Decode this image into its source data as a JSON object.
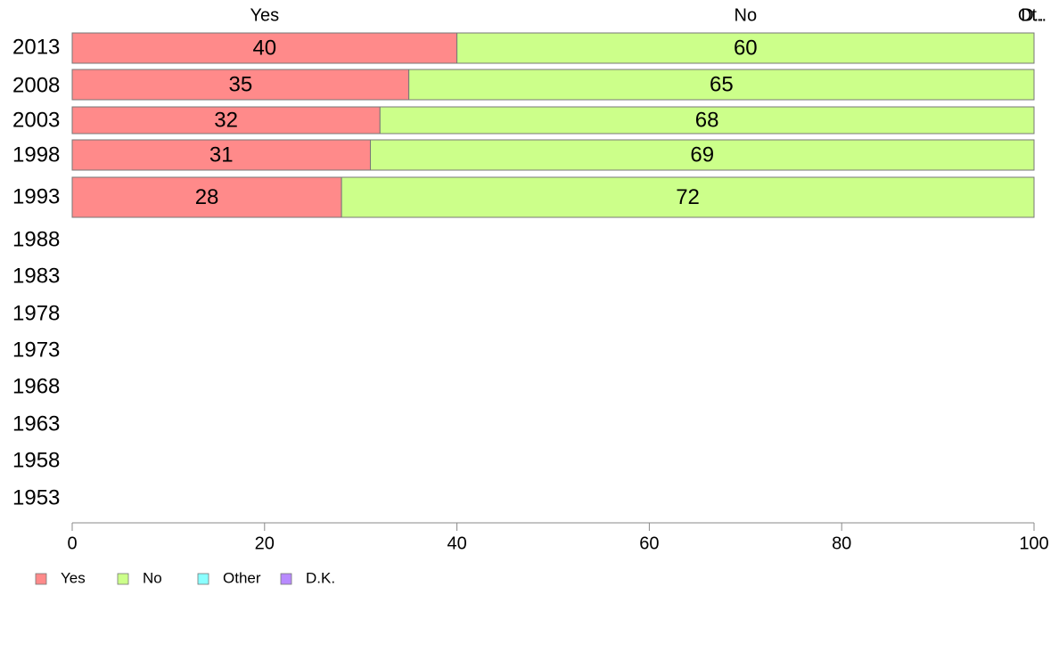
{
  "chart_data": {
    "type": "bar",
    "orientation": "horizontal",
    "stacked": true,
    "categories": [
      "1953",
      "1958",
      "1963",
      "1968",
      "1973",
      "1978",
      "1983",
      "1988",
      "1993",
      "1998",
      "2003",
      "2008",
      "2013"
    ],
    "series": [
      {
        "name": "Yes",
        "color": "#ff8a8a",
        "values": [
          null,
          null,
          null,
          null,
          null,
          null,
          null,
          null,
          28,
          31,
          32,
          35,
          40
        ]
      },
      {
        "name": "No",
        "color": "#ccff8a",
        "values": [
          null,
          null,
          null,
          null,
          null,
          null,
          null,
          null,
          72,
          69,
          68,
          65,
          60
        ]
      },
      {
        "name": "Other",
        "color": "#8affff",
        "values": [
          null,
          null,
          null,
          null,
          null,
          null,
          null,
          null,
          0,
          0,
          0,
          0,
          0
        ]
      },
      {
        "name": "D.K.",
        "color": "#b88aff",
        "values": [
          null,
          null,
          null,
          null,
          null,
          null,
          null,
          null,
          0,
          0,
          0,
          0,
          0
        ]
      }
    ],
    "top_labels": [
      "Yes",
      "No",
      "Ot..",
      "D.."
    ],
    "xlim": [
      0,
      100
    ],
    "x_ticks": [
      "0",
      "20",
      "40",
      "60",
      "80",
      "100"
    ],
    "grid": false,
    "legend_position": "bottom-left"
  }
}
